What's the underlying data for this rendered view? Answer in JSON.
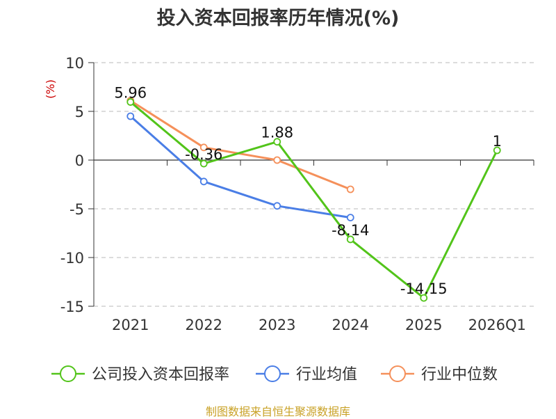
{
  "chart_data": {
    "type": "line",
    "title": "投入资本回报率历年情况(%)",
    "ylabel": "(%)",
    "xlabel": "",
    "categories": [
      "2021",
      "2022",
      "2023",
      "2024",
      "2025",
      "2026Q1"
    ],
    "ylim": [
      -15,
      10
    ],
    "yticks": [
      10,
      5,
      0,
      -5,
      -10,
      -15
    ],
    "grid": "horizontal-dashed",
    "legend_position": "bottom",
    "series": [
      {
        "name": "公司投入资本回报率",
        "color": "#52c41a",
        "values": [
          5.96,
          -0.36,
          1.88,
          -8.14,
          -14.15,
          1
        ],
        "labels": [
          "5.96",
          "-0.36",
          "1.88",
          "-8.14",
          "-14.15",
          "1"
        ]
      },
      {
        "name": "行业均值",
        "color": "#4a7ee6",
        "values": [
          4.5,
          -2.2,
          -4.7,
          -5.9,
          null,
          null
        ]
      },
      {
        "name": "行业中位数",
        "color": "#f5905a",
        "values": [
          6.1,
          1.3,
          0.0,
          -3.0,
          null,
          null
        ]
      }
    ]
  },
  "source": "制图数据来自恒生聚源数据库"
}
